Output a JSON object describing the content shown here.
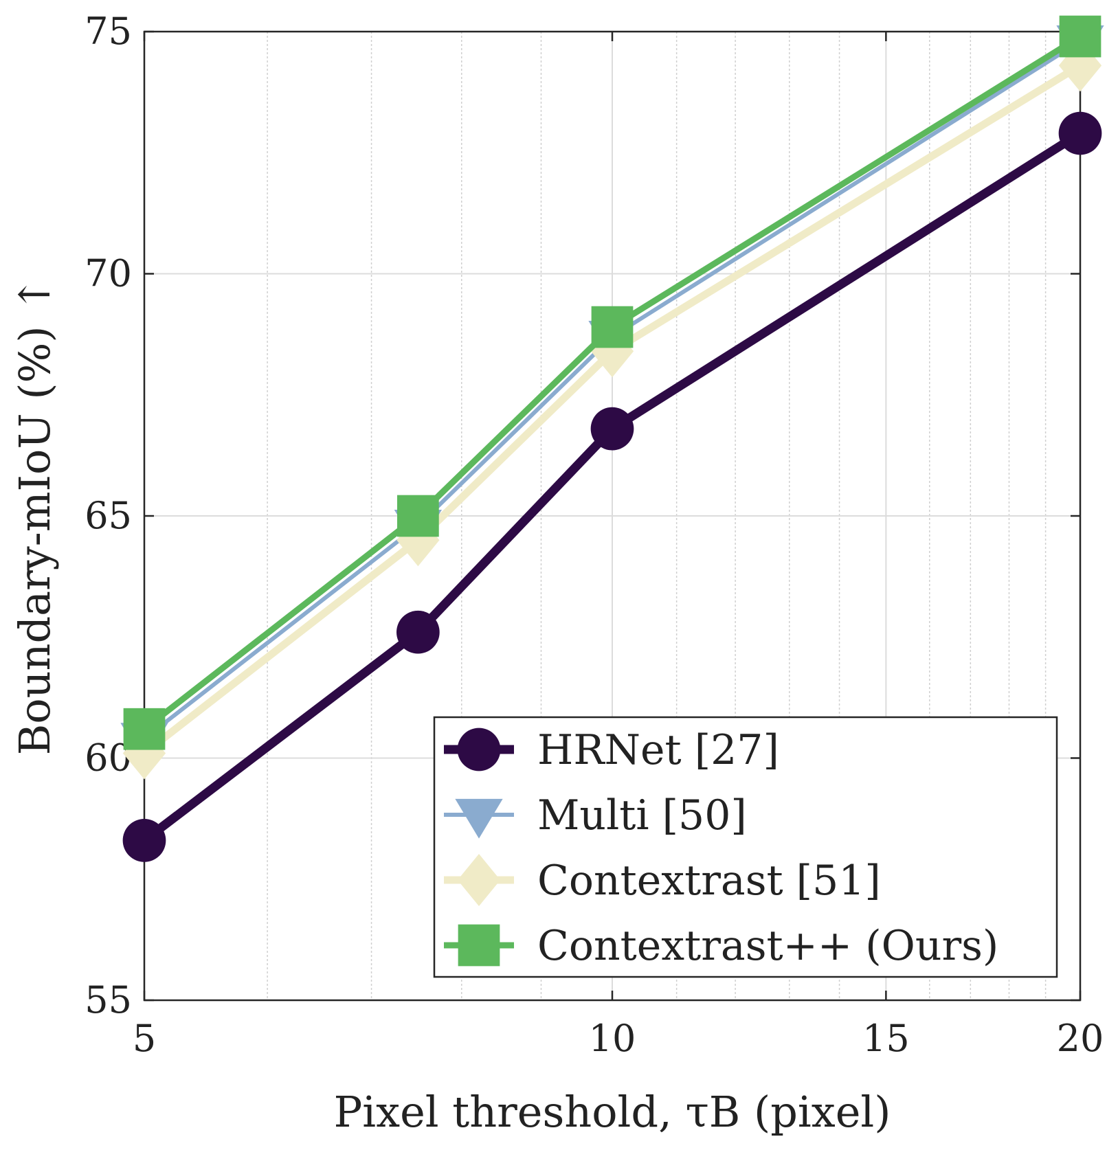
{
  "chart_data": {
    "type": "line",
    "xlabel": "Pixel threshold, τB (pixel)",
    "ylabel": "Boundary-mIoU (%) ↑",
    "x_scale": "log",
    "xlim": [
      5,
      20
    ],
    "ylim": [
      55,
      75
    ],
    "x_ticks": [
      5,
      10,
      15,
      20
    ],
    "x_tick_labels": [
      "5",
      "10",
      "15",
      "20"
    ],
    "y_ticks": [
      55,
      60,
      65,
      70,
      75
    ],
    "y_tick_labels": [
      "55",
      "60",
      "65",
      "70",
      "75"
    ],
    "x_minor_gridlines": [
      6,
      7,
      8,
      9,
      11,
      12,
      13,
      14,
      16,
      17,
      18,
      19
    ],
    "grid": true,
    "legend_position": "bottom-right",
    "x": [
      5,
      7.5,
      10,
      20
    ],
    "series": [
      {
        "name": "HRNet [27]",
        "values": [
          58.3,
          62.6,
          66.8,
          72.9
        ],
        "color": "#2d0a45",
        "marker": "circle"
      },
      {
        "name": "Multi [50]",
        "values": [
          60.4,
          64.8,
          68.7,
          74.8
        ],
        "color": "#8aabcf",
        "marker": "triangle-down"
      },
      {
        "name": "Contextrast [51]",
        "values": [
          60.1,
          64.5,
          68.4,
          74.3
        ],
        "color": "#f0ebc7",
        "marker": "diamond"
      },
      {
        "name": "Contextrast++ (Ours)",
        "values": [
          60.6,
          65.0,
          68.9,
          74.9
        ],
        "color": "#5cb85c",
        "marker": "square"
      }
    ]
  }
}
